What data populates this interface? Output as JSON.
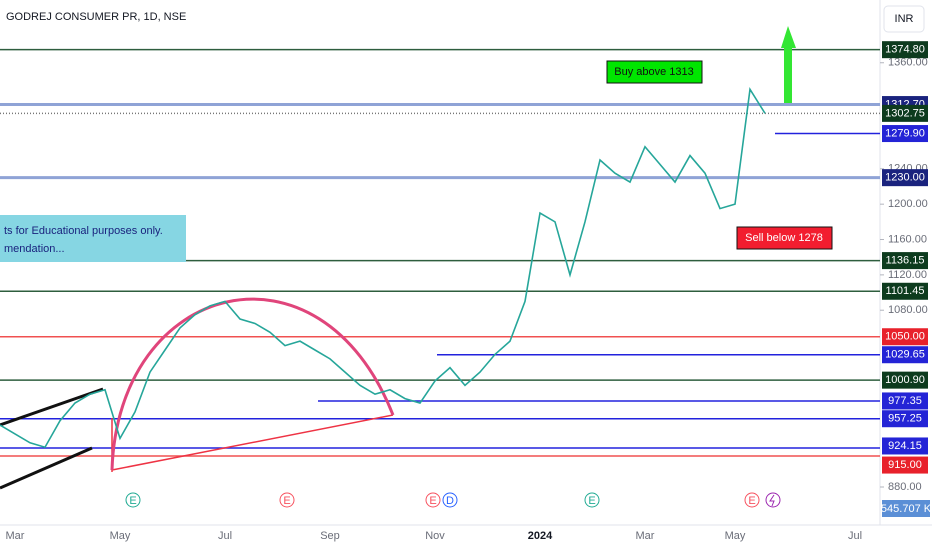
{
  "header": {
    "title": "GODREJ CONSUMER PR, 1D, NSE",
    "currency": "INR"
  },
  "chart_data": {
    "type": "line",
    "color": "#26a69a",
    "categories": [
      null,
      "Mar",
      null,
      null,
      null,
      null,
      null,
      null,
      "May",
      null,
      null,
      null,
      null,
      null,
      null,
      "Jul",
      null,
      null,
      null,
      null,
      null,
      null,
      "Sep",
      null,
      null,
      null,
      null,
      null,
      null,
      "Nov",
      null,
      null,
      null,
      null,
      null,
      null,
      "2024",
      null,
      null,
      null,
      null,
      null,
      null,
      "Mar",
      null,
      null,
      null,
      null,
      null,
      "May",
      null,
      null,
      null,
      null,
      null,
      null,
      null,
      "Jul"
    ],
    "values": [
      950,
      940,
      930,
      925,
      955,
      975,
      985,
      990,
      935,
      965,
      1010,
      1035,
      1060,
      1075,
      1085,
      1090,
      1070,
      1065,
      1055,
      1040,
      1045,
      1035,
      1025,
      1010,
      995,
      985,
      990,
      980,
      975,
      1000,
      1015,
      995,
      1010,
      1030,
      1045,
      1090,
      1190,
      1180,
      1120,
      1180,
      1250,
      1235,
      1225,
      1265,
      1245,
      1225,
      1255,
      1235,
      1195,
      1200,
      1330,
      1302.75,
      null,
      null,
      null,
      null,
      null,
      null
    ],
    "ylim": [
      837,
      1431
    ],
    "yticks": [
      {
        "value": 1360,
        "label": "1360.00"
      },
      {
        "value": 1240,
        "label": "1240.00"
      },
      {
        "value": 1200,
        "label": "1200.00"
      },
      {
        "value": 1160,
        "label": "1160.00"
      },
      {
        "value": 1120,
        "label": "1120.00"
      },
      {
        "value": 1080,
        "label": "1080.00"
      },
      {
        "value": 880,
        "label": "880.00"
      }
    ],
    "levels": [
      {
        "value": 1374.8,
        "label": "1374.80",
        "color": "#2e5e3e",
        "label_color": "#0d3b1e"
      },
      {
        "value": 1312.7,
        "label": "1312.70",
        "color": "#8fa3d6",
        "label_color": "#1a237e"
      },
      {
        "value": 1302.75,
        "label": "1302.75",
        "color": "#777777",
        "label_color": "#0d3b1e"
      },
      {
        "value": 1279.9,
        "label": "1279.90",
        "color": "#2222dd",
        "label_color": "#2424d6"
      },
      {
        "value": 1230,
        "label": "1230.00",
        "color": "#8fa3d6",
        "label_color": "#1a237e"
      },
      {
        "value": 1136.15,
        "label": "1136.15",
        "color": "#2e5e3e",
        "label_color": "#0d3b1e"
      },
      {
        "value": 1101.45,
        "label": "1101.45",
        "color": "#2e5e3e",
        "label_color": "#0d3b1e"
      },
      {
        "value": 1050,
        "label": "1050.00",
        "color": "#f05050",
        "label_color": "#e8212b"
      },
      {
        "value": 1029.65,
        "label": "1029.65",
        "color": "#2222dd",
        "label_color": "#2424d6"
      },
      {
        "value": 1000.9,
        "label": "1000.90",
        "color": "#2e5e3e",
        "label_color": "#0d3b1e"
      },
      {
        "value": 977.35,
        "label": "977.35",
        "color": "#2222dd",
        "label_color": "#2424d6"
      },
      {
        "value": 957.25,
        "label": "957.25",
        "color": "#2222dd",
        "label_color": "#2424d6"
      },
      {
        "value": 924.15,
        "label": "924.15",
        "color": "#2222dd",
        "label_color": "#2424d6"
      },
      {
        "value": 915,
        "label": "915.00",
        "color": "#f05050",
        "label_color": "#e8212b"
      }
    ],
    "annotations": {
      "buy": "Buy above 1313",
      "sell": "Sell below 1278",
      "note_lines": [
        "ts for Educational purposes only.",
        "mendation..."
      ]
    },
    "events": [
      "E",
      "E",
      "E",
      "D",
      "E",
      "E"
    ],
    "volume_label": "545.707 K"
  }
}
